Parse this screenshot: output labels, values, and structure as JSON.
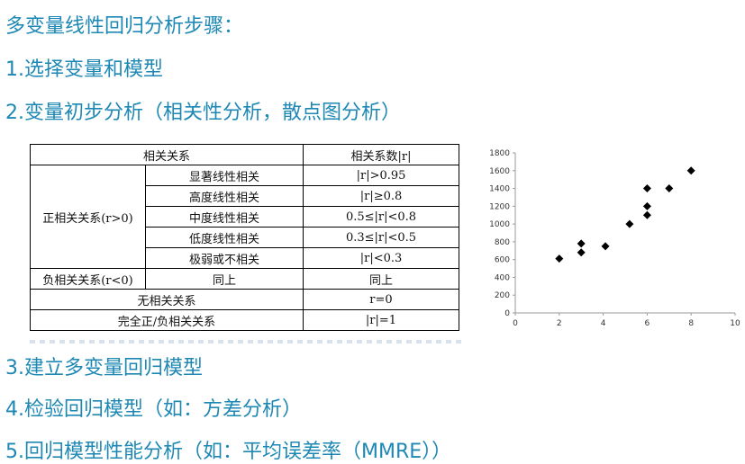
{
  "title": "多变量线性回归分析步骤：",
  "steps": {
    "s1": "1.选择变量和模型",
    "s2": "2.变量初步分析（相关性分析，散点图分析）",
    "s3": "3.建立多变量回归模型",
    "s4": "4.检验回归模型（如：方差分析）",
    "s5": "5.回归模型性能分析（如：平均误差率（MMRE））"
  },
  "table": {
    "header_relation": "相关关系",
    "header_coef": "相关系数|r|",
    "positive_group": "正相关关系(r>0)",
    "rows": [
      {
        "type": "显著线性相关",
        "range": "|r|>0.95"
      },
      {
        "type": "高度线性相关",
        "range": "|r|≥0.8"
      },
      {
        "type": "中度线性相关",
        "range": "0.5≤|r|<0.8"
      },
      {
        "type": "低度线性相关",
        "range": "0.3≤|r|<0.5"
      },
      {
        "type": "极弱或不相关",
        "range": "|r|<0.3"
      }
    ],
    "negative": {
      "label": "负相关关系(r<0)",
      "type": "同上",
      "range": "同上"
    },
    "none": {
      "label": "无相关关系",
      "range": "r=0"
    },
    "complete": {
      "label": "完全正/负相关关系",
      "range": "|r|=1"
    }
  },
  "chart_data": {
    "type": "scatter",
    "title": "",
    "xlabel": "",
    "ylabel": "",
    "xlim": [
      0,
      10
    ],
    "ylim": [
      0,
      1800
    ],
    "xticks": [
      0,
      2,
      4,
      6,
      8,
      10
    ],
    "yticks": [
      0,
      200,
      400,
      600,
      800,
      1000,
      1200,
      1400,
      1600,
      1800
    ],
    "marker": "diamond",
    "marker_color": "#000000",
    "points": [
      {
        "x": 2,
        "y": 610
      },
      {
        "x": 3,
        "y": 680
      },
      {
        "x": 3,
        "y": 780
      },
      {
        "x": 4.1,
        "y": 750
      },
      {
        "x": 5.2,
        "y": 1000
      },
      {
        "x": 6,
        "y": 1100
      },
      {
        "x": 6,
        "y": 1200
      },
      {
        "x": 6,
        "y": 1400
      },
      {
        "x": 7,
        "y": 1400
      },
      {
        "x": 8,
        "y": 1600
      }
    ]
  }
}
